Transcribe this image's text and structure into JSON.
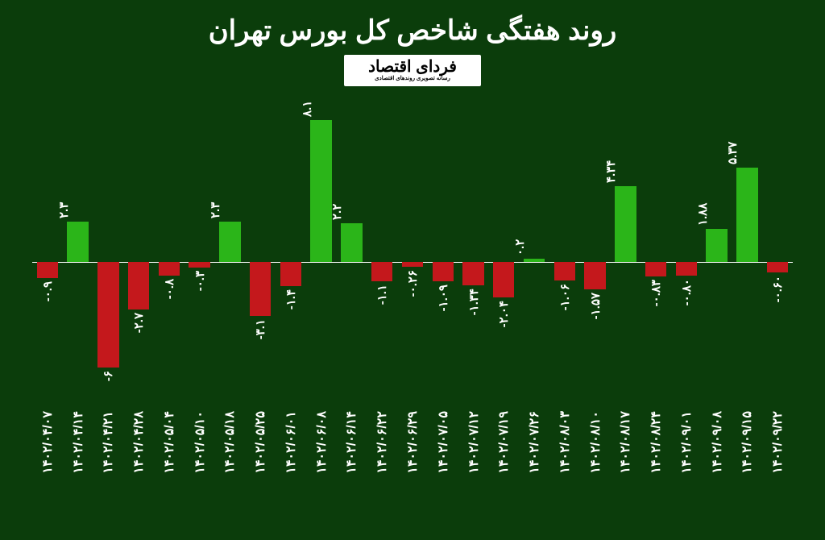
{
  "title": "روند هفتگی شاخص کل بورس تهران",
  "logo": {
    "main": "فردای اقتصاد",
    "sub": "رسانه تصویری روندهای اقتصادی"
  },
  "chart": {
    "type": "bar",
    "background_color": "#0b3d0b",
    "axis_color": "#ffffff",
    "text_color": "#ffffff",
    "title_fontsize": 34,
    "label_fontsize": 15,
    "xlabel_fontsize": 16,
    "positive_color": "#2bb519",
    "negative_color": "#c4181c",
    "ylim": [
      -8.5,
      8.5
    ],
    "bar_width": 0.7,
    "categories": [
      "۱۴۰۲/۰۴/۰۷",
      "۱۴۰۲/۰۴/۱۴",
      "۱۴۰۲/۰۴/۲۱",
      "۱۴۰۲/۰۴/۲۸",
      "۱۴۰۲/۰۵/۰۴",
      "۱۴۰۲/۰۵/۱۰",
      "۱۴۰۲/۰۵/۱۸",
      "۱۴۰۲/۰۵/۲۵",
      "۱۴۰۲/۰۶/۰۱",
      "۱۴۰۲/۰۶/۰۸",
      "۱۴۰۲/۰۶/۱۴",
      "۱۴۰۲/۰۶/۲۲",
      "۱۴۰۲/۰۶/۲۹",
      "۱۴۰۲/۰۷/۰۵",
      "۱۴۰۲/۰۷/۱۲",
      "۱۴۰۲/۰۷/۱۹",
      "۱۴۰۲/۰۷/۲۶",
      "۱۴۰۲/۰۸/۰۳",
      "۱۴۰۲/۰۸/۱۰",
      "۱۴۰۲/۰۸/۱۷",
      "۱۴۰۲/۰۸/۲۴",
      "۱۴۰۲/۰۹/۰۱",
      "۱۴۰۲/۰۹/۰۸",
      "۱۴۰۲/۰۹/۱۵",
      "۱۴۰۲/۰۹/۲۲"
    ],
    "values": [
      -0.9,
      2.3,
      -6.0,
      -2.7,
      -0.8,
      -0.3,
      2.3,
      -3.1,
      -1.4,
      8.1,
      2.2,
      -1.1,
      -0.26,
      -1.09,
      -1.34,
      -2.04,
      0.2,
      -1.06,
      -1.57,
      4.34,
      -0.83,
      -0.8,
      1.88,
      5.37,
      -0.6
    ],
    "value_labels": [
      "-۰.۹",
      "۲.۳",
      "-۶",
      "-۲.۷",
      "-۰.۸",
      "-۰.۳",
      "۲.۳",
      "-۳.۱",
      "-۱.۴",
      "۸.۱",
      "۲.۲",
      "-۱.۱",
      "-۰.۲۶",
      "-۱.۰۹",
      "-۱.۳۴",
      "-۲.۰۴",
      "۰.۲",
      "-۱.۰۶",
      "-۱.۵۷",
      "۴.۳۴",
      "-۰.۸۳",
      "-۰.۸۰",
      "۱.۸۸",
      "۵.۳۷",
      "-۰.۶۰"
    ]
  }
}
